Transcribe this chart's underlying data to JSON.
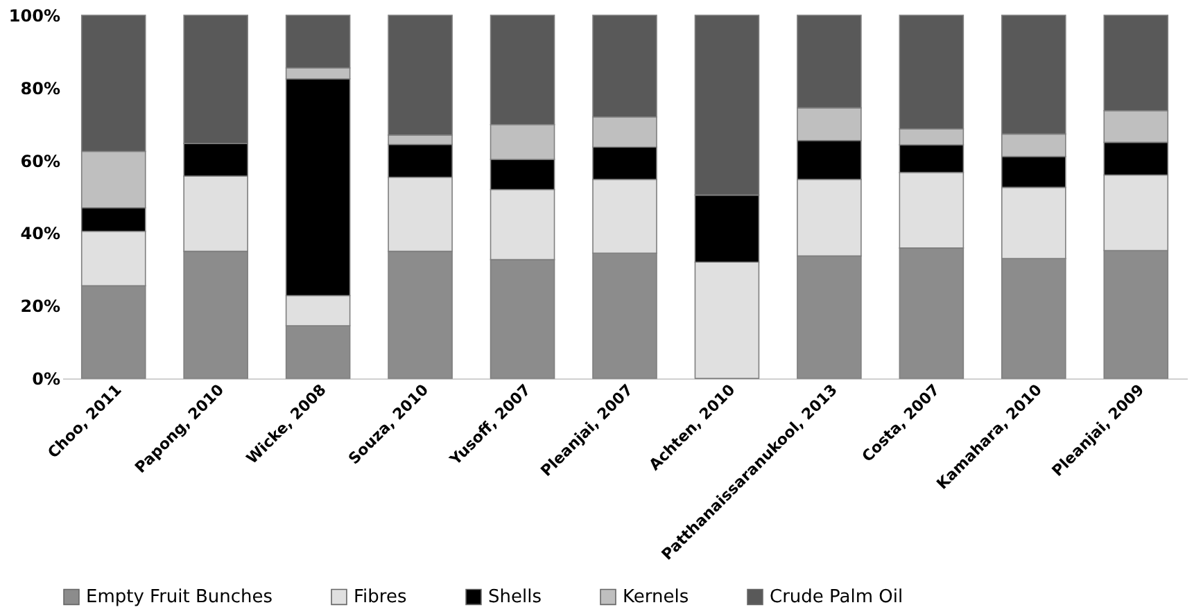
{
  "chart_data": {
    "type": "bar",
    "stacked": true,
    "categories": [
      "Choo, 2011",
      "Papong, 2010",
      "Wicke, 2008",
      "Souza, 2010",
      "Yusoff, 2007",
      "Pleanjai, 2007",
      "Achten, 2010",
      "Patthanaissaranukool, 2013",
      "Costa, 2007",
      "Kamahara, 2010",
      "Pleanjai, 2009"
    ],
    "series": [
      {
        "name": "Empty Fruit Bunches",
        "color": "#8c8c8c",
        "values": [
          25.5,
          35,
          14.5,
          35,
          32.7,
          34.5,
          0,
          33.7,
          35.9,
          33,
          35.2
        ]
      },
      {
        "name": "Fibres",
        "color": "#e0e0e0",
        "values": [
          15,
          20.7,
          8.3,
          20.4,
          19.3,
          20.3,
          32,
          21.1,
          20.8,
          19.6,
          20.8
        ]
      },
      {
        "name": "Shells",
        "color": "#000000",
        "values": [
          6.5,
          9,
          59.7,
          9,
          8.3,
          8.9,
          18.5,
          10.7,
          7.6,
          8.5,
          9
        ]
      },
      {
        "name": "Kernels",
        "color": "#bfbfbf",
        "values": [
          15.5,
          0,
          3,
          2.6,
          9.6,
          8.3,
          0,
          9,
          4.4,
          6.2,
          8.7
        ]
      },
      {
        "name": "Crude Palm Oil",
        "color": "#595959",
        "values": [
          37.5,
          35.3,
          14.5,
          33,
          30.1,
          28,
          49.5,
          25.5,
          31.3,
          32.7,
          26.3
        ]
      }
    ],
    "ylim": [
      0,
      100
    ],
    "yticks": [
      {
        "value": 0,
        "label": "0%"
      },
      {
        "value": 20,
        "label": "20%"
      },
      {
        "value": 40,
        "label": "40%"
      },
      {
        "value": 60,
        "label": "60%"
      },
      {
        "value": 80,
        "label": "80%"
      },
      {
        "value": 100,
        "label": "100%"
      }
    ],
    "grid": false,
    "legend": "bottom"
  }
}
